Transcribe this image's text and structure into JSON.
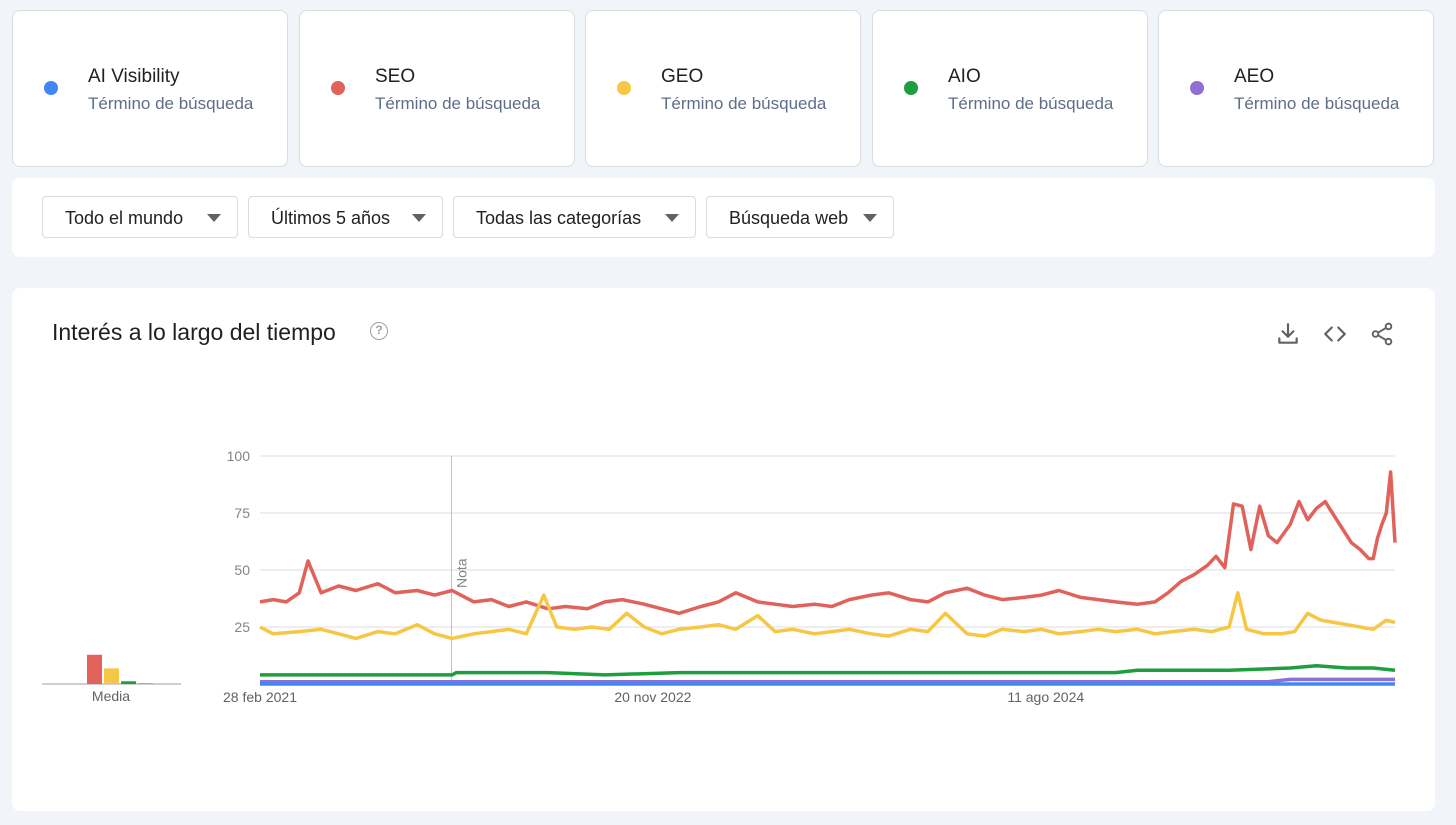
{
  "terms": [
    {
      "name": "AI Visibility",
      "sub": "Término de búsqueda",
      "color": "#4285f4"
    },
    {
      "name": "SEO",
      "sub": "Término de búsqueda",
      "color": "#e0625a"
    },
    {
      "name": "GEO",
      "sub": "Término de búsqueda",
      "color": "#f6c744"
    },
    {
      "name": "AIO",
      "sub": "Término de búsqueda",
      "color": "#1e9e3e"
    },
    {
      "name": "AEO",
      "sub": "Término de búsqueda",
      "color": "#8f6ed5"
    }
  ],
  "filters": {
    "region": "Todo el mundo",
    "time": "Últimos 5 años",
    "category": "Todas las categorías",
    "type": "Búsqueda web"
  },
  "chart_card": {
    "title": "Interés a lo largo del tiempo",
    "help_icon": "help-circle-icon",
    "tools": [
      "download-icon",
      "embed-code-icon",
      "share-icon"
    ]
  },
  "chart_data": {
    "type": "line",
    "yticks": [
      100,
      75,
      50,
      25
    ],
    "ylim": [
      0,
      100
    ],
    "xlim": [
      "2021-02-28",
      "2026-02-22"
    ],
    "xticks": [
      {
        "date": "2021-02-28",
        "label": "28 feb 2021"
      },
      {
        "date": "2022-11-20",
        "label": "20 nov 2022"
      },
      {
        "date": "2024-08-11",
        "label": "11 ago 2024"
      }
    ],
    "note": {
      "date": "2022-01-01",
      "label": "Nota"
    },
    "series": [
      {
        "name": "SEO",
        "color": "#e0625a",
        "points": [
          [
            "2021-02-28",
            36
          ],
          [
            "2021-03-21",
            37
          ],
          [
            "2021-04-11",
            36
          ],
          [
            "2021-05-02",
            40
          ],
          [
            "2021-05-16",
            54
          ],
          [
            "2021-06-06",
            40
          ],
          [
            "2021-07-04",
            43
          ],
          [
            "2021-08-01",
            41
          ],
          [
            "2021-09-05",
            44
          ],
          [
            "2021-10-03",
            40
          ],
          [
            "2021-11-07",
            41
          ],
          [
            "2021-12-05",
            39
          ],
          [
            "2022-01-02",
            41
          ],
          [
            "2022-02-06",
            36
          ],
          [
            "2022-03-06",
            37
          ],
          [
            "2022-04-03",
            34
          ],
          [
            "2022-05-01",
            36
          ],
          [
            "2022-06-05",
            33
          ],
          [
            "2022-07-03",
            34
          ],
          [
            "2022-08-07",
            33
          ],
          [
            "2022-09-04",
            36
          ],
          [
            "2022-10-02",
            37
          ],
          [
            "2022-11-06",
            35
          ],
          [
            "2022-12-04",
            33
          ],
          [
            "2023-01-01",
            31
          ],
          [
            "2023-02-05",
            34
          ],
          [
            "2023-03-05",
            36
          ],
          [
            "2023-04-02",
            40
          ],
          [
            "2023-05-07",
            36
          ],
          [
            "2023-06-04",
            35
          ],
          [
            "2023-07-02",
            34
          ],
          [
            "2023-08-06",
            35
          ],
          [
            "2023-09-03",
            34
          ],
          [
            "2023-10-01",
            37
          ],
          [
            "2023-11-05",
            39
          ],
          [
            "2023-12-03",
            40
          ],
          [
            "2024-01-07",
            37
          ],
          [
            "2024-02-04",
            36
          ],
          [
            "2024-03-03",
            40
          ],
          [
            "2024-04-07",
            42
          ],
          [
            "2024-05-05",
            39
          ],
          [
            "2024-06-02",
            37
          ],
          [
            "2024-07-07",
            38
          ],
          [
            "2024-08-04",
            39
          ],
          [
            "2024-09-01",
            41
          ],
          [
            "2024-10-06",
            38
          ],
          [
            "2024-11-03",
            37
          ],
          [
            "2024-12-01",
            36
          ],
          [
            "2025-01-05",
            35
          ],
          [
            "2025-02-02",
            36
          ],
          [
            "2025-02-23",
            40
          ],
          [
            "2025-03-16",
            45
          ],
          [
            "2025-04-06",
            48
          ],
          [
            "2025-04-27",
            52
          ],
          [
            "2025-05-11",
            56
          ],
          [
            "2025-05-25",
            51
          ],
          [
            "2025-06-08",
            79
          ],
          [
            "2025-06-22",
            78
          ],
          [
            "2025-07-06",
            59
          ],
          [
            "2025-07-20",
            78
          ],
          [
            "2025-08-03",
            65
          ],
          [
            "2025-08-17",
            62
          ],
          [
            "2025-09-07",
            70
          ],
          [
            "2025-09-21",
            80
          ],
          [
            "2025-10-05",
            72
          ],
          [
            "2025-10-19",
            77
          ],
          [
            "2025-11-02",
            80
          ],
          [
            "2025-11-16",
            74
          ],
          [
            "2025-11-30",
            68
          ],
          [
            "2025-12-14",
            62
          ],
          [
            "2025-12-28",
            59
          ],
          [
            "2026-01-11",
            55
          ],
          [
            "2026-01-18",
            55
          ],
          [
            "2026-01-25",
            64
          ],
          [
            "2026-02-01",
            70
          ],
          [
            "2026-02-08",
            75
          ],
          [
            "2026-02-15",
            93
          ],
          [
            "2026-02-22",
            62
          ]
        ]
      },
      {
        "name": "GEO",
        "color": "#f6c744",
        "points": [
          [
            "2021-02-28",
            25
          ],
          [
            "2021-03-21",
            22
          ],
          [
            "2021-05-02",
            23
          ],
          [
            "2021-06-06",
            24
          ],
          [
            "2021-07-04",
            22
          ],
          [
            "2021-08-01",
            20
          ],
          [
            "2021-09-05",
            23
          ],
          [
            "2021-10-03",
            22
          ],
          [
            "2021-11-07",
            26
          ],
          [
            "2021-12-05",
            22
          ],
          [
            "2022-01-02",
            20
          ],
          [
            "2022-02-06",
            22
          ],
          [
            "2022-03-06",
            23
          ],
          [
            "2022-04-03",
            24
          ],
          [
            "2022-05-01",
            22
          ],
          [
            "2022-05-29",
            39
          ],
          [
            "2022-06-19",
            25
          ],
          [
            "2022-07-17",
            24
          ],
          [
            "2022-08-14",
            25
          ],
          [
            "2022-09-11",
            24
          ],
          [
            "2022-10-09",
            31
          ],
          [
            "2022-11-06",
            25
          ],
          [
            "2022-12-04",
            22
          ],
          [
            "2023-01-01",
            24
          ],
          [
            "2023-02-05",
            25
          ],
          [
            "2023-03-05",
            26
          ],
          [
            "2023-04-02",
            24
          ],
          [
            "2023-05-07",
            30
          ],
          [
            "2023-06-04",
            23
          ],
          [
            "2023-07-02",
            24
          ],
          [
            "2023-08-06",
            22
          ],
          [
            "2023-09-03",
            23
          ],
          [
            "2023-10-01",
            24
          ],
          [
            "2023-11-05",
            22
          ],
          [
            "2023-12-03",
            21
          ],
          [
            "2024-01-07",
            24
          ],
          [
            "2024-02-04",
            23
          ],
          [
            "2024-03-03",
            31
          ],
          [
            "2024-04-07",
            22
          ],
          [
            "2024-05-05",
            21
          ],
          [
            "2024-06-02",
            24
          ],
          [
            "2024-07-07",
            23
          ],
          [
            "2024-08-04",
            24
          ],
          [
            "2024-09-01",
            22
          ],
          [
            "2024-10-06",
            23
          ],
          [
            "2024-11-03",
            24
          ],
          [
            "2024-12-01",
            23
          ],
          [
            "2025-01-05",
            24
          ],
          [
            "2025-02-02",
            22
          ],
          [
            "2025-03-02",
            23
          ],
          [
            "2025-04-06",
            24
          ],
          [
            "2025-05-04",
            23
          ],
          [
            "2025-06-01",
            25
          ],
          [
            "2025-06-15",
            40
          ],
          [
            "2025-06-29",
            24
          ],
          [
            "2025-07-27",
            22
          ],
          [
            "2025-08-24",
            22
          ],
          [
            "2025-09-14",
            23
          ],
          [
            "2025-10-05",
            31
          ],
          [
            "2025-10-26",
            28
          ],
          [
            "2025-11-16",
            27
          ],
          [
            "2025-12-07",
            26
          ],
          [
            "2025-12-28",
            25
          ],
          [
            "2026-01-18",
            24
          ],
          [
            "2026-02-08",
            28
          ],
          [
            "2026-02-22",
            27
          ]
        ]
      },
      {
        "name": "AIO",
        "color": "#1e9e3e",
        "points": [
          [
            "2021-02-28",
            4
          ],
          [
            "2021-06-06",
            4
          ],
          [
            "2021-09-05",
            4
          ],
          [
            "2021-12-05",
            4
          ],
          [
            "2022-01-02",
            4
          ],
          [
            "2022-01-09",
            5
          ],
          [
            "2022-06-05",
            5
          ],
          [
            "2022-09-04",
            4
          ],
          [
            "2023-01-01",
            5
          ],
          [
            "2023-06-04",
            5
          ],
          [
            "2023-12-03",
            5
          ],
          [
            "2024-06-02",
            5
          ],
          [
            "2024-12-01",
            5
          ],
          [
            "2025-01-05",
            6
          ],
          [
            "2025-06-01",
            6
          ],
          [
            "2025-09-07",
            7
          ],
          [
            "2025-10-19",
            8
          ],
          [
            "2025-12-07",
            7
          ],
          [
            "2026-01-18",
            7
          ],
          [
            "2026-02-22",
            6
          ]
        ]
      },
      {
        "name": "AEO",
        "color": "#8f6ed5",
        "points": [
          [
            "2021-02-28",
            1
          ],
          [
            "2022-01-02",
            1
          ],
          [
            "2023-01-01",
            1
          ],
          [
            "2024-01-07",
            1
          ],
          [
            "2025-01-05",
            1
          ],
          [
            "2025-08-03",
            1
          ],
          [
            "2025-09-07",
            2
          ],
          [
            "2025-10-05",
            2
          ],
          [
            "2025-12-07",
            2
          ],
          [
            "2026-02-22",
            2
          ]
        ]
      },
      {
        "name": "AI Visibility",
        "color": "#4285f4",
        "points": [
          [
            "2021-02-28",
            0
          ],
          [
            "2026-02-22",
            0
          ]
        ]
      }
    ]
  },
  "average_chart": {
    "label": "Media",
    "bars": [
      {
        "term": "SEO",
        "value": 43,
        "color": "#e0625a"
      },
      {
        "term": "GEO",
        "value": 23,
        "color": "#f6c744"
      },
      {
        "term": "AIO",
        "value": 4,
        "color": "#1e9e3e"
      },
      {
        "term": "AEO",
        "value": 1,
        "color": "#8f6ed5"
      }
    ]
  }
}
